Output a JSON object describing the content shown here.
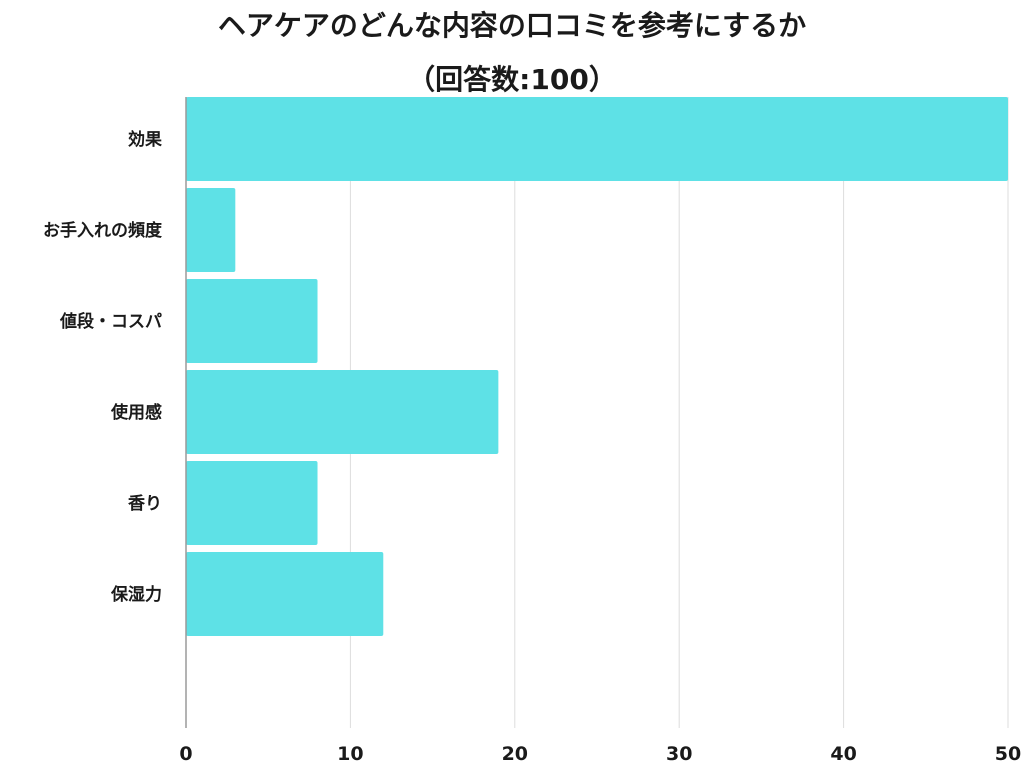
{
  "title": {
    "line1": "ヘアケアのどんな内容の口コミを参考にするか",
    "line2": "（回答数:100）"
  },
  "chart_data": {
    "type": "bar",
    "orientation": "horizontal",
    "title": "ヘアケアのどんな内容の口コミを参考にするか（回答数:100）",
    "categories": [
      "効果",
      "お手入れの頻度",
      "値段・コスパ",
      "使用感",
      "香り",
      "保湿力"
    ],
    "values": [
      50,
      3,
      8,
      19,
      8,
      12
    ],
    "xlim": [
      0,
      50
    ],
    "xticks": [
      0,
      10,
      20,
      30,
      40,
      50
    ],
    "xlabel": "",
    "ylabel": "",
    "grid": "vertical",
    "legend": "none",
    "bar_color": "#5ee1e6",
    "grid_color": "#dddddd",
    "axis_color": "#9a9a9a"
  }
}
